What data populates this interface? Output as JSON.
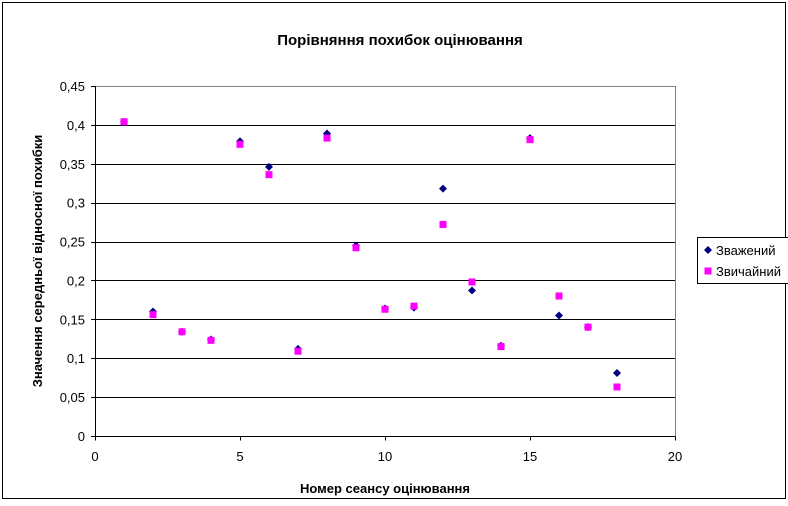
{
  "chart_data": {
    "type": "scatter",
    "title": "Порівняння похибок оцінювання",
    "xlabel": "Номер сеансу оцінювання",
    "ylabel": "Значення середньої відносної похибки",
    "xlim": [
      0,
      20
    ],
    "ylim": [
      0,
      0.45
    ],
    "x_ticks": [
      0,
      5,
      10,
      15,
      20
    ],
    "x_tick_labels": [
      "0",
      "5",
      "10",
      "15",
      "20"
    ],
    "y_ticks": [
      0,
      0.05,
      0.1,
      0.15,
      0.2,
      0.25,
      0.3,
      0.35,
      0.4,
      0.45
    ],
    "y_tick_labels": [
      "0",
      "0,05",
      "0,1",
      "0,15",
      "0,2",
      "0,25",
      "0,3",
      "0,35",
      "0,4",
      "0,45"
    ],
    "grid": "horizontal",
    "legend_position": "right",
    "series": [
      {
        "name": "Зважений",
        "marker": "diamond",
        "color": "#000080",
        "points": [
          [
            1,
            0.404
          ],
          [
            2,
            0.16
          ],
          [
            3,
            0.134
          ],
          [
            4,
            0.124
          ],
          [
            5,
            0.379
          ],
          [
            6,
            0.346
          ],
          [
            7,
            0.112
          ],
          [
            8,
            0.389
          ],
          [
            9,
            0.245
          ],
          [
            10,
            0.164
          ],
          [
            11,
            0.165
          ],
          [
            12,
            0.318
          ],
          [
            13,
            0.187
          ],
          [
            14,
            0.116
          ],
          [
            15,
            0.383
          ],
          [
            16,
            0.155
          ],
          [
            17,
            0.14
          ],
          [
            18,
            0.081
          ]
        ]
      },
      {
        "name": "Звичайний",
        "marker": "square",
        "color": "#ff00ff",
        "points": [
          [
            1,
            0.404
          ],
          [
            2,
            0.156
          ],
          [
            3,
            0.134
          ],
          [
            4,
            0.123
          ],
          [
            5,
            0.375
          ],
          [
            6,
            0.336
          ],
          [
            7,
            0.109
          ],
          [
            8,
            0.383
          ],
          [
            9,
            0.242
          ],
          [
            10,
            0.163
          ],
          [
            11,
            0.167
          ],
          [
            12,
            0.272
          ],
          [
            13,
            0.198
          ],
          [
            14,
            0.115
          ],
          [
            15,
            0.381
          ],
          [
            16,
            0.18
          ],
          [
            17,
            0.14
          ],
          [
            18,
            0.063
          ]
        ]
      }
    ]
  }
}
